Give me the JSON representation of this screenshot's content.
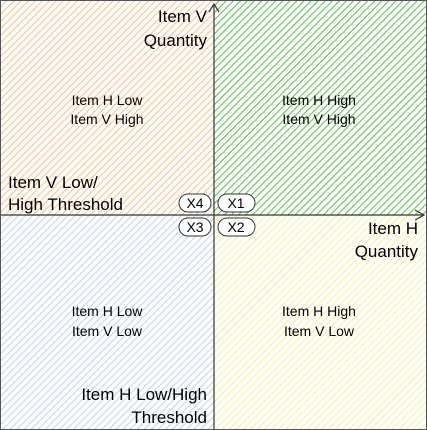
{
  "quadrants": {
    "top_left": {
      "line1": "Item H Low",
      "line2": "Item V High",
      "color": "#f5c48a"
    },
    "top_right": {
      "line1": "Item H High",
      "line2": "Item V High",
      "color": "#5cc94f"
    },
    "bottom_left": {
      "line1": "Item H Low",
      "line2": "Item V Low",
      "color": "#c2d6e8"
    },
    "bottom_right": {
      "line1": "Item H High",
      "line2": "Item V Low",
      "color": "#f0f0a0"
    }
  },
  "axes": {
    "v_axis_label_line1": "Item V",
    "v_axis_label_line2": "Quantity",
    "h_axis_label_line1": "Item H",
    "h_axis_label_line2": "Quantity"
  },
  "thresholds": {
    "v_threshold_line1": "Item V Low/",
    "v_threshold_line2": "High Threshold",
    "h_threshold_line1": "Item H Low/High",
    "h_threshold_line2": "Threshold"
  },
  "badges": {
    "x1": "X1",
    "x2": "X2",
    "x3": "X3",
    "x4": "X4"
  },
  "colors": {
    "axis": "#333333",
    "border": "#555555",
    "badge_fill": "#ffffff"
  }
}
